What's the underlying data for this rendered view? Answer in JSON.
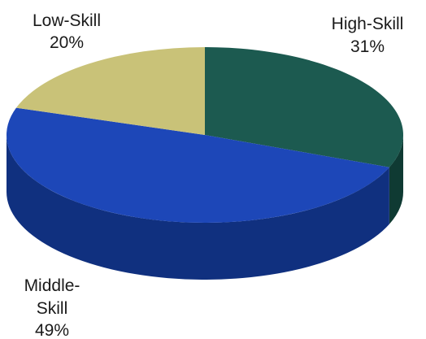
{
  "chart_data": {
    "type": "pie",
    "title": "",
    "slices": [
      {
        "name": "High-Skill",
        "value": 31,
        "label_lines": [
          "High-Skill",
          "31%"
        ],
        "color": "#1c5a50",
        "side_color": "#0f3a33"
      },
      {
        "name": "Middle-Skill",
        "value": 49,
        "label_lines": [
          "Middle-",
          "Skill",
          "49%"
        ],
        "color": "#1d47b8",
        "side_color": "#10307f"
      },
      {
        "name": "Low-Skill",
        "value": 20,
        "label_lines": [
          "Low-Skill",
          "20%"
        ],
        "color": "#c9c278",
        "side_color": "#9f9852"
      }
    ]
  }
}
